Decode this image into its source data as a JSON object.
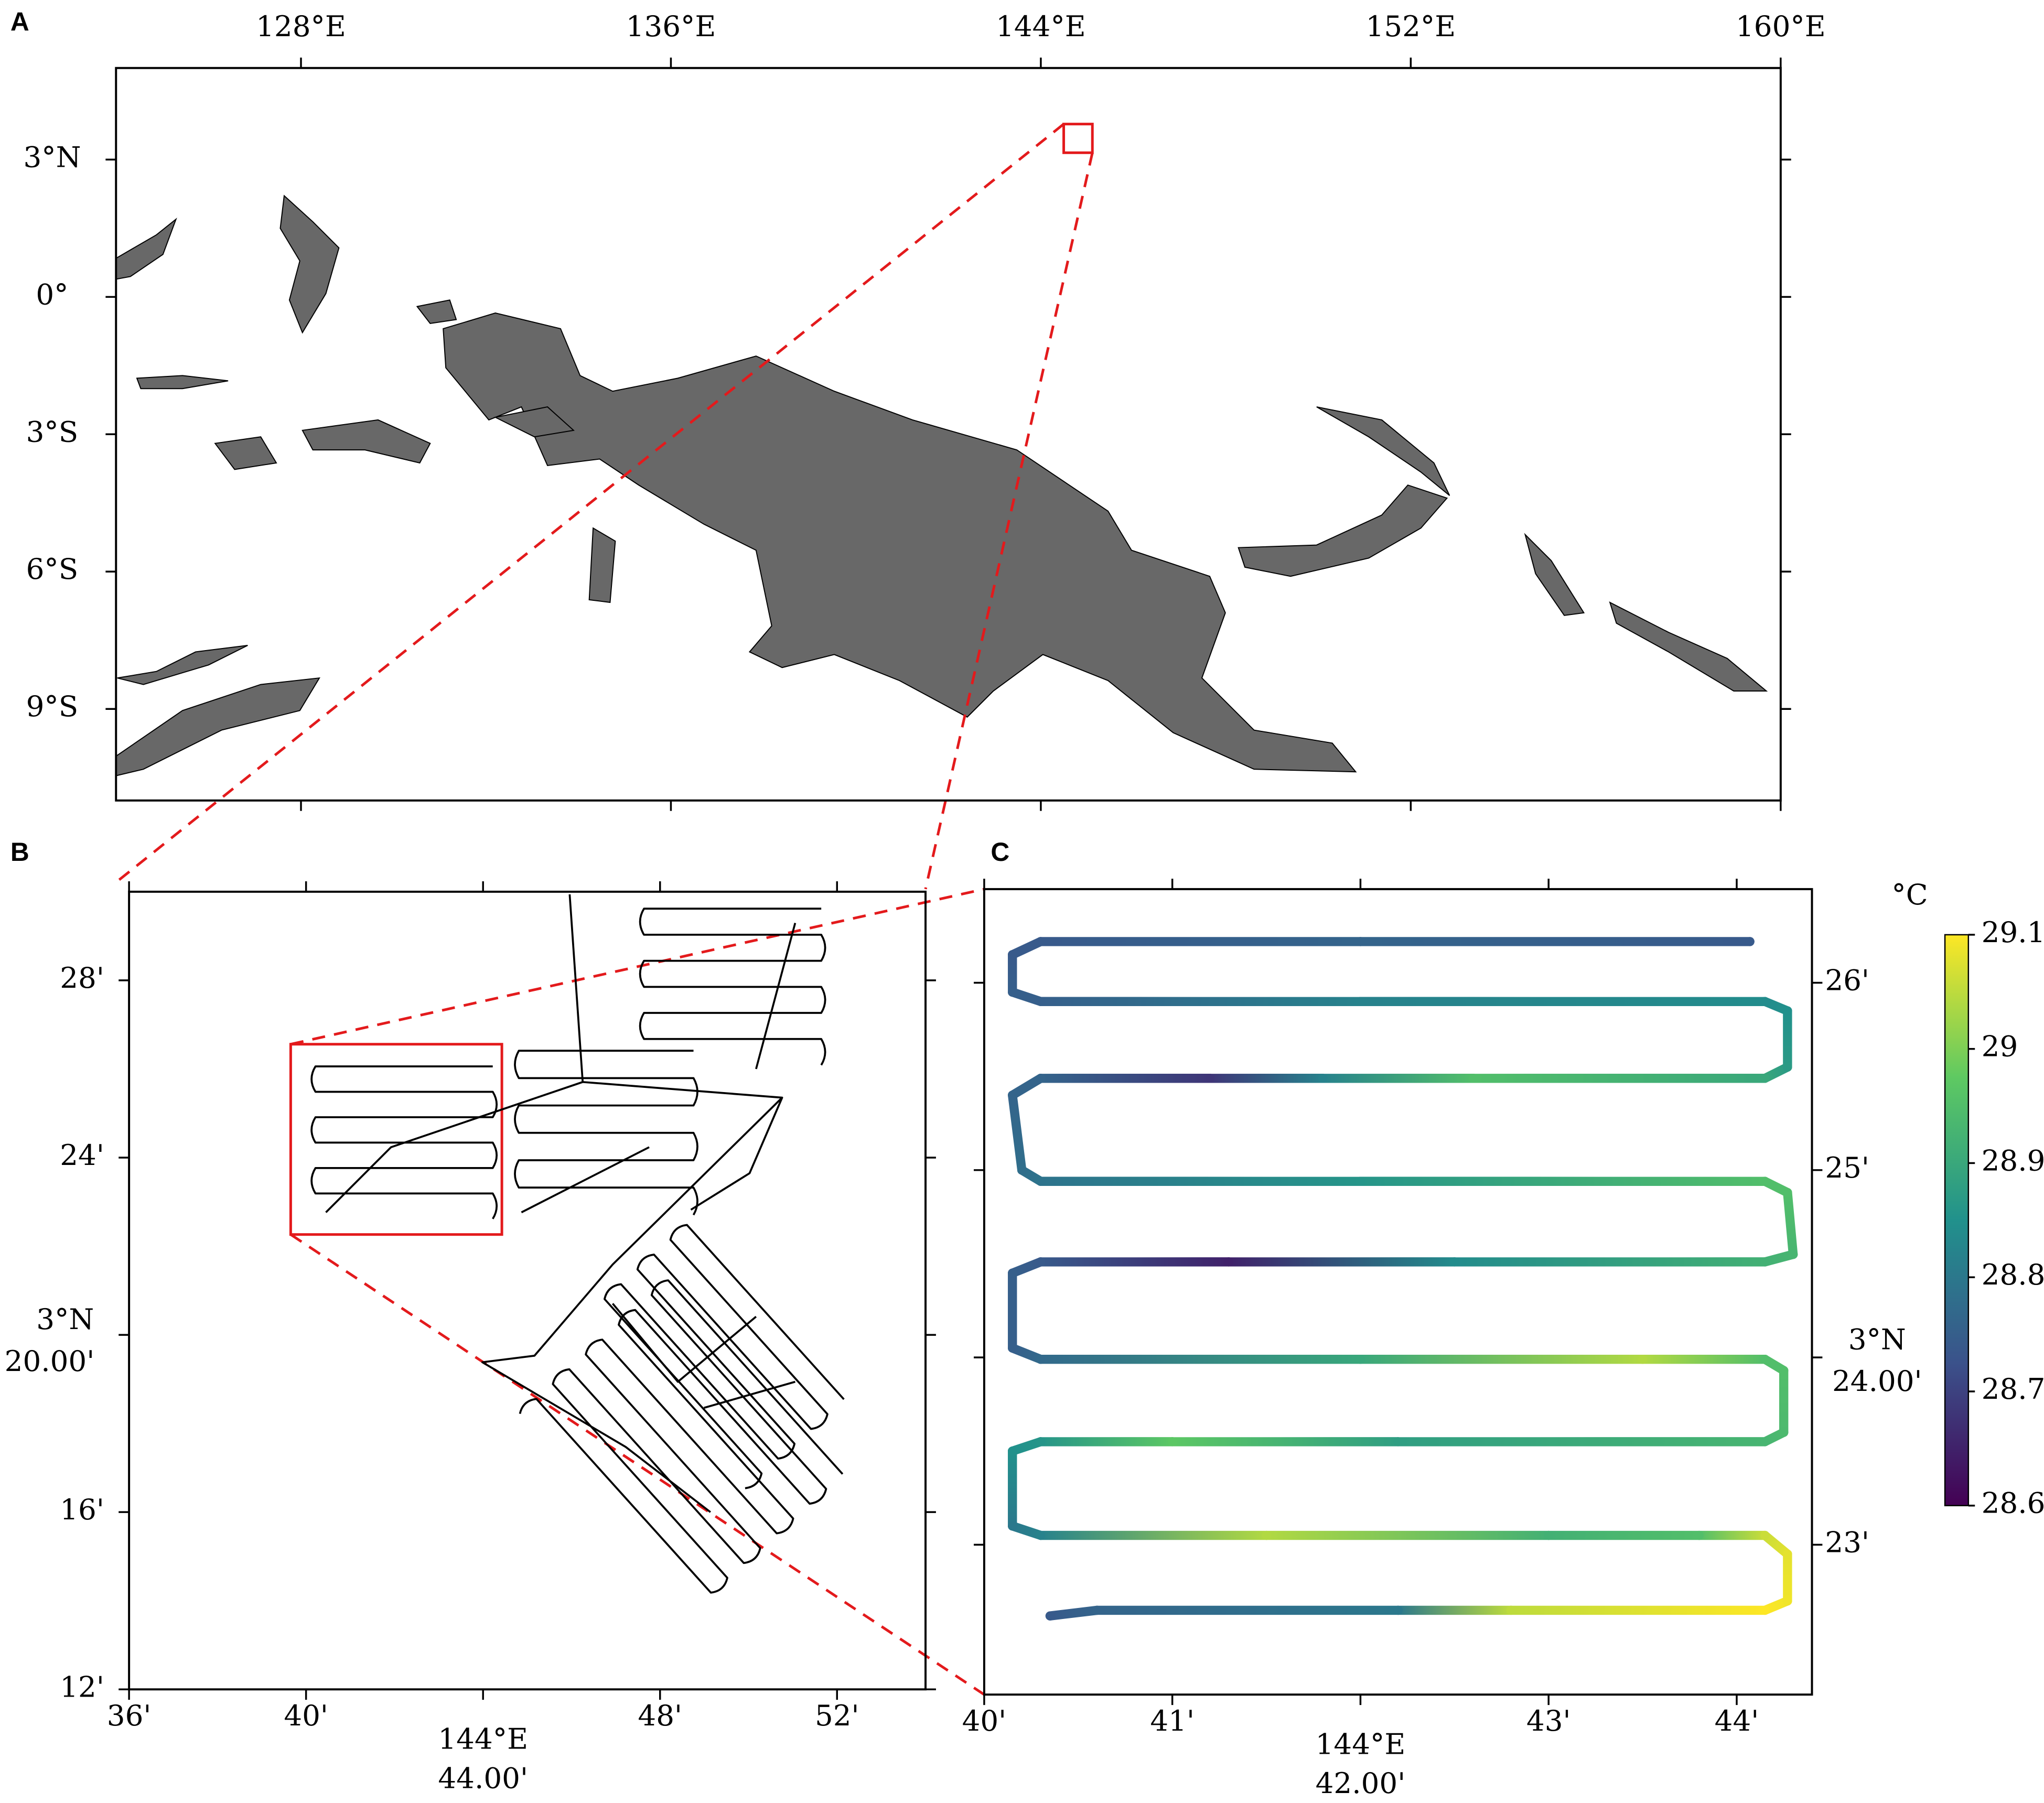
{
  "panels": [
    {
      "label": "A",
      "type": "map",
      "xlim": [
        124,
        160
      ],
      "ylim": [
        -11,
        5
      ],
      "xticks": [
        {
          "value": 128,
          "label": "128°E"
        },
        {
          "value": 136,
          "label": "136°E"
        },
        {
          "value": 144,
          "label": "144°E"
        },
        {
          "value": 152,
          "label": "152°E"
        },
        {
          "value": 160,
          "label": "160°E"
        }
      ],
      "yticks": [
        {
          "value": 3,
          "label": "3°N"
        },
        {
          "value": 0,
          "label": "0°"
        },
        {
          "value": -3,
          "label": "3°S"
        },
        {
          "value": -6,
          "label": "6°S"
        },
        {
          "value": -9,
          "label": "9°S"
        }
      ]
    },
    {
      "label": "B",
      "type": "map",
      "xlim": [
        36,
        54
      ],
      "ylim": [
        12,
        30
      ],
      "xlabel": "144°E",
      "ylabel": "3°N",
      "xticks": [
        {
          "value": 36,
          "label": "36'"
        },
        {
          "value": 40,
          "label": "40'"
        },
        {
          "value": 44,
          "label": "44.00'"
        },
        {
          "value": 48,
          "label": "48'"
        },
        {
          "value": 52,
          "label": "52'"
        }
      ],
      "yticks": [
        {
          "value": 12,
          "label": "12'"
        },
        {
          "value": 16,
          "label": "16'"
        },
        {
          "value": 20,
          "label": "20.00'"
        },
        {
          "value": 24,
          "label": "24'"
        },
        {
          "value": 28,
          "label": "28'"
        }
      ]
    },
    {
      "label": "C",
      "type": "track",
      "xlim": [
        40,
        44.4
      ],
      "ylim": [
        22.2,
        26.5
      ],
      "xlabel": "144°E",
      "ylabel": "3°N",
      "xticks": [
        {
          "value": 40,
          "label": "40'"
        },
        {
          "value": 41,
          "label": "41'"
        },
        {
          "value": 42,
          "label": "42.00'"
        },
        {
          "value": 43,
          "label": "43'"
        },
        {
          "value": 44,
          "label": "44'"
        }
      ],
      "yticks": [
        {
          "value": 23,
          "label": "23'"
        },
        {
          "value": 24,
          "label": "24.00'"
        },
        {
          "value": 25,
          "label": "25'"
        },
        {
          "value": 26,
          "label": "26'"
        }
      ],
      "track": {
        "x": [
          44.07,
          42,
          40.3,
          40.15,
          40.15,
          40.3,
          42,
          44.15,
          44.27,
          44.27,
          44.15,
          42.6,
          41.8,
          41.2,
          40.3,
          40.15,
          40.2,
          40.3,
          42,
          44.15,
          44.27,
          44.3,
          44.15,
          42.5,
          41.3,
          40.3,
          40.15,
          40.15,
          40.3,
          42,
          43.5,
          44.15,
          44.25,
          44.25,
          44.15,
          42.2,
          41,
          40.3,
          40.15,
          40.15,
          40.3,
          41.5,
          43,
          43.8,
          44.15,
          44.27,
          44.27,
          44.15,
          42.8,
          42.2,
          40.6,
          40.35
        ],
        "y": [
          26.22,
          26.22,
          26.22,
          26.15,
          25.95,
          25.9,
          25.9,
          25.9,
          25.85,
          25.55,
          25.49,
          25.49,
          25.49,
          25.49,
          25.49,
          25.4,
          25.0,
          24.94,
          24.94,
          24.94,
          24.88,
          24.55,
          24.51,
          24.51,
          24.51,
          24.51,
          24.45,
          24.05,
          23.99,
          23.99,
          23.99,
          23.99,
          23.93,
          23.6,
          23.55,
          23.55,
          23.55,
          23.55,
          23.5,
          23.1,
          23.05,
          23.05,
          23.05,
          23.05,
          23.05,
          22.95,
          22.7,
          22.65,
          22.65,
          22.65,
          22.65,
          22.62
        ],
        "values": [
          28.74,
          28.76,
          28.74,
          28.74,
          28.75,
          28.75,
          28.82,
          28.84,
          28.85,
          28.87,
          28.9,
          28.95,
          28.82,
          28.68,
          28.76,
          28.76,
          28.78,
          28.79,
          28.86,
          28.95,
          28.95,
          28.93,
          28.92,
          28.84,
          28.65,
          28.74,
          28.75,
          28.75,
          28.77,
          28.9,
          29.04,
          28.95,
          28.95,
          28.94,
          28.93,
          28.88,
          28.97,
          28.86,
          28.85,
          28.8,
          28.82,
          29.04,
          28.92,
          28.95,
          29.06,
          29.08,
          29.09,
          29.1,
          29.05,
          28.8,
          28.76,
          28.74
        ]
      },
      "colorbar": {
        "title": "°C",
        "lim": [
          28.6,
          29.1
        ],
        "ticks": [
          28.6,
          28.7,
          28.8,
          28.9,
          29,
          29.1
        ],
        "colormap": [
          "#440154",
          "#3b528b",
          "#21918c",
          "#5ec962",
          "#fde725"
        ]
      }
    }
  ]
}
